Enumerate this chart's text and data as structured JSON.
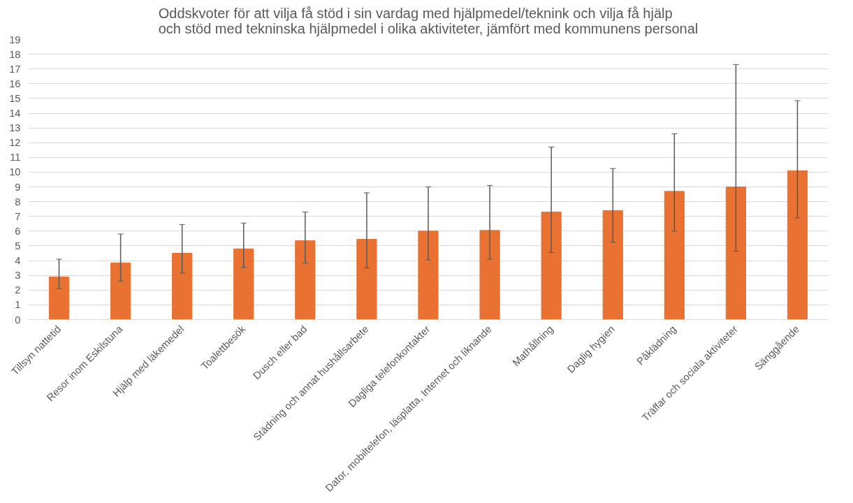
{
  "chart_data": {
    "type": "bar",
    "title": "Oddskvoter för att vilja få stöd i sin vardag med hjälpmedel/teknink och vilja få hjälp och stöd med tekninska hjälpmedel i olika aktiviteter, jämfört med kommunens personal",
    "categories": [
      "Tillsyn nattetid",
      "Resor inom Eskilstuna",
      "Hjälp med läkemedel",
      "Toalettbesök",
      "Dusch eller bad",
      "Städning och annat hushållsarbete",
      "Dagliga telefonkontakter",
      "Dator, mobiltelefon, läsplatta, Internet och liknande",
      "Mathållning",
      "Daglig hygien",
      "Påklädning",
      "Träffar och sociala aktiviteter",
      "Sänggående"
    ],
    "values": [
      2.9,
      3.85,
      4.5,
      4.8,
      5.35,
      5.45,
      6.0,
      6.05,
      7.3,
      7.4,
      8.7,
      9.0,
      10.1
    ],
    "errors": [
      [
        2.1,
        4.1
      ],
      [
        2.6,
        5.8
      ],
      [
        3.15,
        6.45
      ],
      [
        3.55,
        6.55
      ],
      [
        3.85,
        7.3
      ],
      [
        3.5,
        8.6
      ],
      [
        4.05,
        9.0
      ],
      [
        4.1,
        9.1
      ],
      [
        4.55,
        11.7
      ],
      [
        5.25,
        10.25
      ],
      [
        6.0,
        12.6
      ],
      [
        4.65,
        17.3
      ],
      [
        6.9,
        14.85
      ]
    ],
    "color": "#e97132",
    "ylim": [
      0,
      19
    ],
    "yticks": [
      0,
      1,
      2,
      3,
      4,
      5,
      6,
      7,
      8,
      9,
      10,
      11,
      12,
      13,
      14,
      15,
      16,
      17,
      18,
      19
    ],
    "grid": "y"
  }
}
